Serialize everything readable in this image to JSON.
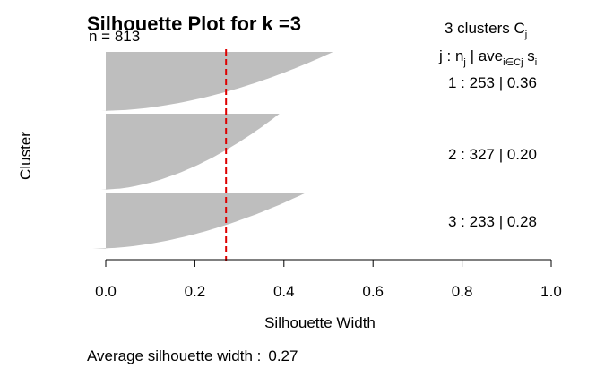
{
  "chart_data": {
    "type": "bar",
    "title": "Silhouette Plot for k =3",
    "n_label": "n = 813",
    "xlabel": "Silhouette Width",
    "ylabel": "Cluster",
    "xlim": [
      0.0,
      1.0
    ],
    "x_ticks": [
      "0.0",
      "0.2",
      "0.4",
      "0.6",
      "0.8",
      "1.0"
    ],
    "average_silhouette_width": 0.27,
    "footer_label": "Average silhouette width :",
    "footer_value": "0.27",
    "legend": {
      "header_main": "3  clusters  C",
      "header_main_sub": "j",
      "header_cols": {
        "j_label": "j :  n",
        "j_sub": "j",
        "ave_label": " | ave",
        "ave_sub": "i∈Cj",
        "s_label": "  s",
        "s_sub": "i"
      }
    },
    "clusters": [
      {
        "id": 1,
        "n": 253,
        "avg": 0.36,
        "label": "1 :   253  |  0.36",
        "max": 0.51,
        "min": -0.01
      },
      {
        "id": 2,
        "n": 327,
        "avg": 0.2,
        "label": "2 :   327  |  0.20",
        "max": 0.39,
        "min": -0.01
      },
      {
        "id": 3,
        "n": 233,
        "avg": 0.28,
        "label": "3 :   233  |  0.28",
        "max": 0.45,
        "min": -0.03
      }
    ],
    "colors": {
      "bar": "#bebebe",
      "avg_line": "#dd0000"
    }
  }
}
